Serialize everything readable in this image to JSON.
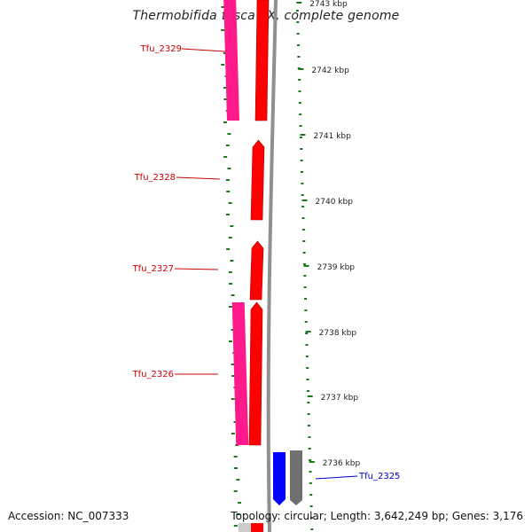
{
  "title": "Thermobifida fusca YX, complete genome",
  "accession": "Accession: NC_007333",
  "summary": "Topology: circular; Length: 3,642,249 bp; Genes: 3,176",
  "colors": {
    "forward_gene": "#ff0000",
    "reverse_gene": "#0000ff",
    "cds_forward": "#ff1a8c",
    "cds_reverse": "#707070",
    "gc_skew": "#1a7a1a",
    "backbone": "#909090",
    "label_forward": "#cc0000",
    "label_reverse": "#0000cc"
  },
  "scale_labels": [
    "2743 kbp",
    "2742 kbp",
    "2741 kbp",
    "2740 kbp",
    "2739 kbp",
    "2738 kbp",
    "2737 kbp",
    "2736 kbp"
  ],
  "genes": [
    {
      "name": "Tfu_2329",
      "strand": "forward"
    },
    {
      "name": "Tfu_2328",
      "strand": "forward"
    },
    {
      "name": "Tfu_2327",
      "strand": "forward"
    },
    {
      "name": "Tfu_2326",
      "strand": "forward"
    },
    {
      "name": "Tfu_2325",
      "strand": "reverse"
    }
  ]
}
